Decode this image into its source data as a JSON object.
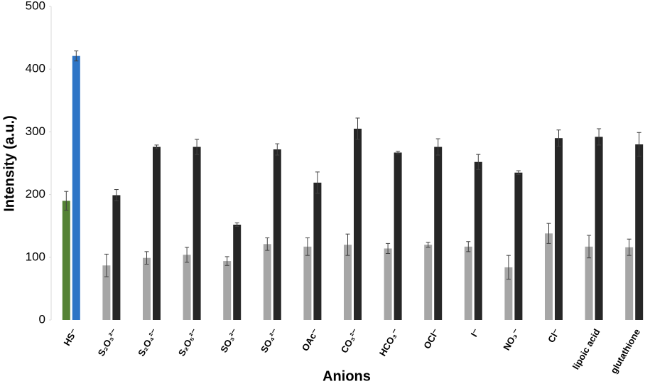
{
  "chart_data": {
    "type": "bar",
    "x_label": "Anions",
    "y_label": "Intensity (a.u.)",
    "categories": [
      "HS⁻",
      "S₂O₃²⁻",
      "S₂O₄²⁻",
      "S₂O₅²⁻",
      "SO₃²⁻",
      "SO₄²⁻",
      "OAc⁻",
      "CO₃²⁻",
      "HCO₃⁻",
      "OCl⁻",
      "I⁻",
      "NO₃⁻",
      "Cl⁻",
      "lipoic acid",
      "glutathione"
    ],
    "series": [
      {
        "colors": [
          "#548235",
          "#a6a6a6",
          "#a6a6a6",
          "#a6a6a6",
          "#a6a6a6",
          "#a6a6a6",
          "#a6a6a6",
          "#a6a6a6",
          "#a6a6a6",
          "#a6a6a6",
          "#a6a6a6",
          "#a6a6a6",
          "#a6a6a6",
          "#a6a6a6",
          "#a6a6a6"
        ],
        "values": [
          190,
          87,
          99,
          104,
          94,
          121,
          117,
          120,
          114,
          120,
          117,
          84,
          138,
          117,
          116
        ],
        "errors": [
          15,
          18,
          10,
          12,
          7,
          10,
          14,
          17,
          8,
          4,
          8,
          19,
          16,
          18,
          13
        ]
      },
      {
        "colors": [
          "#2e75c6",
          "#262626",
          "#262626",
          "#262626",
          "#262626",
          "#262626",
          "#262626",
          "#262626",
          "#262626",
          "#262626",
          "#262626",
          "#262626",
          "#262626",
          "#262626",
          "#262626"
        ],
        "values": [
          421,
          199,
          276,
          276,
          152,
          272,
          219,
          305,
          267,
          276,
          252,
          235,
          290,
          292,
          280
        ],
        "errors": [
          8,
          9,
          3,
          12,
          3,
          9,
          17,
          17,
          2,
          13,
          12,
          3,
          13,
          13,
          19
        ]
      }
    ],
    "ylim": [
      0,
      500
    ],
    "yticks": [
      0,
      100,
      200,
      300,
      400,
      500
    ]
  }
}
